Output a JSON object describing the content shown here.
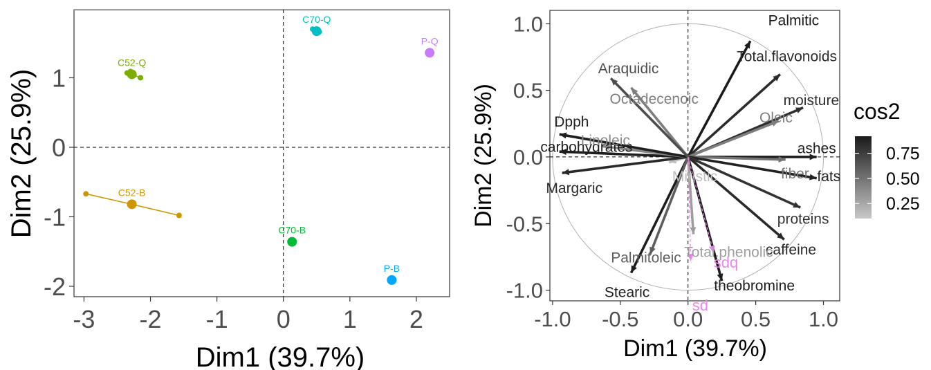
{
  "chart_data": [
    {
      "type": "scatter",
      "title": "",
      "xlabel": "Dim1 (39.7%)",
      "ylabel": "Dim2 (25.9%)",
      "xlim": [
        -3.15,
        2.5
      ],
      "ylim": [
        -2.15,
        1.98
      ],
      "xticks": [
        -3,
        -2,
        -1,
        0,
        1,
        2
      ],
      "yticks": [
        1,
        0,
        -1,
        -2
      ],
      "reference_lines": {
        "x": 0,
        "y": 0,
        "style": "dashed"
      },
      "grid": false,
      "groups": [
        {
          "label": "C52-Q",
          "color": "#7cae00",
          "centroid": [
            -2.28,
            1.05
          ],
          "points": [
            [
              -2.35,
              1.07
            ],
            [
              -2.15,
              1.0
            ],
            [
              -2.3,
              1.09
            ]
          ]
        },
        {
          "label": "C52-B",
          "color": "#cd9600",
          "centroid": [
            -2.28,
            -0.82
          ],
          "points": [
            [
              -2.97,
              -0.67
            ],
            [
              -1.57,
              -0.98
            ]
          ]
        },
        {
          "label": "C70-Q",
          "color": "#00bfc4",
          "centroid": [
            0.5,
            1.67
          ],
          "points": [
            [
              0.44,
              1.7
            ],
            [
              0.54,
              1.66
            ]
          ]
        },
        {
          "label": "C70-B",
          "color": "#00ba38",
          "centroid": [
            0.13,
            -1.36
          ],
          "points": []
        },
        {
          "label": "P-Q",
          "color": "#c77cff",
          "centroid": [
            2.2,
            1.36
          ],
          "points": []
        },
        {
          "label": "P-B",
          "color": "#00a9ff",
          "centroid": [
            1.63,
            -1.91
          ],
          "points": [
            [
              1.6,
              -1.9
            ],
            [
              1.66,
              -1.92
            ]
          ]
        }
      ]
    },
    {
      "type": "vector",
      "title": "",
      "xlabel": "Dim1 (39.7%)",
      "ylabel": "Dim2 (25.9%)",
      "xlim": [
        -1.02,
        1.12
      ],
      "ylim": [
        -1.08,
        1.1
      ],
      "xticks": [
        -1.0,
        -0.5,
        0.0,
        0.5,
        1.0
      ],
      "yticks": [
        1.0,
        0.5,
        0.0,
        -0.5,
        -1.0
      ],
      "xtick_labels": [
        "-1.0",
        "-0.5",
        "0.0",
        "0.5",
        "1.0"
      ],
      "ytick_labels": [
        "1.0",
        "0.5",
        "0.0",
        "-0.5",
        "-1.0"
      ],
      "unit_circle": true,
      "legend": {
        "title": "cos2",
        "position": "right",
        "ticks": [
          0.75,
          0.5,
          0.25
        ],
        "tick_labels": [
          "0.75",
          "0.50",
          "0.25"
        ],
        "range": [
          0.1,
          0.92
        ],
        "colors": [
          "#c8c8c8",
          "#1a1a1a"
        ]
      },
      "variables": [
        {
          "name": "Palmitic",
          "x": 0.46,
          "y": 0.87,
          "cos2": 0.92
        },
        {
          "name": "Total.flavonoids",
          "x": 0.68,
          "y": 0.62,
          "cos2": 0.84
        },
        {
          "name": "moisture",
          "x": 0.85,
          "y": 0.37,
          "cos2": 0.82
        },
        {
          "name": "Oleic",
          "x": 0.67,
          "y": 0.27,
          "cos2": 0.45
        },
        {
          "name": "ashes",
          "x": 0.95,
          "y": 0.0,
          "cos2": 0.9
        },
        {
          "name": "fiber",
          "x": 0.72,
          "y": -0.02,
          "cos2": 0.5
        },
        {
          "name": "fats",
          "x": 0.95,
          "y": -0.16,
          "cos2": 0.88
        },
        {
          "name": "proteins",
          "x": 0.83,
          "y": -0.38,
          "cos2": 0.8
        },
        {
          "name": "caffeine",
          "x": 0.71,
          "y": -0.62,
          "cos2": 0.85
        },
        {
          "name": "theobromine",
          "x": 0.25,
          "y": -0.93,
          "cos2": 0.9
        },
        {
          "name": "Total.phenolic",
          "x": 0.04,
          "y": -0.58,
          "cos2": 0.3
        },
        {
          "name": "Stearic",
          "x": -0.42,
          "y": -0.87,
          "cos2": 0.9
        },
        {
          "name": "Palmitoleic",
          "x": -0.28,
          "y": -0.73,
          "cos2": 0.6
        },
        {
          "name": "Miristic",
          "x": -0.14,
          "y": -0.04,
          "cos2": 0.15
        },
        {
          "name": "Margaric",
          "x": -0.93,
          "y": -0.12,
          "cos2": 0.85
        },
        {
          "name": "carbohydrates",
          "x": -0.95,
          "y": 0.04,
          "cos2": 0.9
        },
        {
          "name": "Linoleic",
          "x": -0.63,
          "y": 0.08,
          "cos2": 0.4
        },
        {
          "name": "Dpph",
          "x": -0.95,
          "y": 0.17,
          "cos2": 0.9
        },
        {
          "name": "Octadecenoic",
          "x": -0.42,
          "y": 0.52,
          "cos2": 0.45
        },
        {
          "name": "Araquidic",
          "x": -0.57,
          "y": 0.59,
          "cos2": 0.68
        }
      ],
      "supplementary": [
        {
          "name": "sdq",
          "x": 0.19,
          "y": -0.72,
          "color": "#ee82ee"
        },
        {
          "name": "sd",
          "x": 0.02,
          "y": -0.78,
          "color": "#ee82ee"
        }
      ]
    }
  ],
  "label_texts": {
    "Palmitic": "Palmitic",
    "Total.flavonoids": "Total.flavonoids",
    "moisture": "moisture",
    "Oleic": "Oleic",
    "ashes": "ashes",
    "fiber": "fiber",
    "fats": "fats",
    "proteins": "proteins",
    "caffeine": "caffeine",
    "theobromine": "theobromine",
    "Total.phenolic": "Total.phenolic",
    "Stearic": "Stearic",
    "Palmitoleic": "Palmitoleic",
    "Miristic": "Miristic",
    "Margaric": "Margaric",
    "carbohydrates": "carbohydrates",
    "Linoleic": "Linoleic",
    "Dpph": "Dpph",
    "Octadecenoic": "Octadecenoic",
    "Araquidic": "Araquidic"
  }
}
